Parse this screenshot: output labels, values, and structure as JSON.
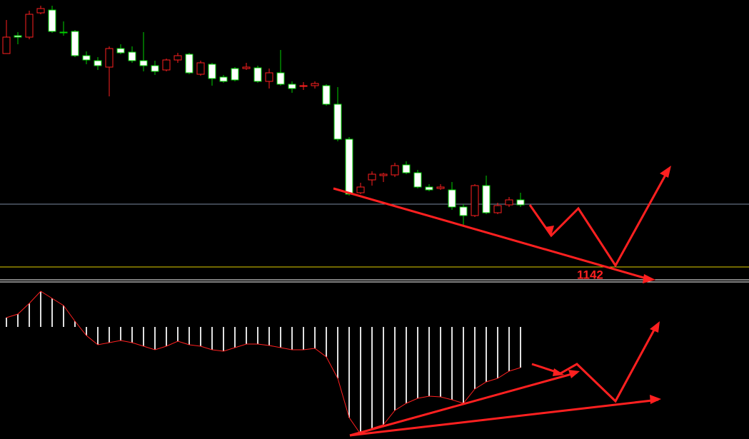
{
  "chart_data": [
    {
      "type": "candlestick",
      "up_color": "#ff2020",
      "down_color": "#ffffff",
      "wick_down_color": "#00d000",
      "ylim": [
        1132.5,
        1329
      ],
      "open": [
        1291.5,
        1304,
        1303,
        1320,
        1322,
        1306.5,
        1307,
        1290,
        1286.5,
        1282,
        1295,
        1292.5,
        1286.5,
        1283,
        1280,
        1287,
        1291,
        1277,
        1284,
        1275,
        1281,
        1281,
        1281.5,
        1272,
        1278,
        1270,
        1268.5,
        1269,
        1269,
        1256,
        1231.5,
        1194,
        1203,
        1206,
        1206.5,
        1213.5,
        1208,
        1198,
        1197,
        1196,
        1184,
        1178,
        1199,
        1180,
        1185.5,
        1189
      ],
      "high": [
        1315,
        1306.5,
        1321.5,
        1325,
        1325,
        1314,
        1308,
        1293,
        1289,
        1296.5,
        1298,
        1296.5,
        1306.5,
        1286.5,
        1288,
        1292,
        1292,
        1286.5,
        1285,
        1276.5,
        1282,
        1285,
        1283,
        1281,
        1294,
        1272,
        1271.5,
        1272,
        1270,
        1268,
        1233,
        1201,
        1209,
        1208,
        1215,
        1216,
        1210,
        1200,
        1200,
        1201.5,
        1186,
        1200,
        1206,
        1187,
        1191,
        1194
      ],
      "low": [
        1291.5,
        1298,
        1301.5,
        1319,
        1306,
        1304,
        1289,
        1284,
        1280,
        1261.5,
        1291,
        1285,
        1279,
        1276.5,
        1279,
        1285,
        1277,
        1276,
        1269,
        1271,
        1272,
        1280,
        1271,
        1267,
        1269,
        1264,
        1266,
        1267,
        1255,
        1230,
        1192,
        1193,
        1199,
        1201.5,
        1205,
        1207,
        1197,
        1195,
        1196,
        1182,
        1171,
        1177,
        1179,
        1179,
        1184,
        1184
      ],
      "close": [
        1303,
        1303,
        1319,
        1323,
        1307,
        1306,
        1290,
        1287,
        1283,
        1295,
        1292,
        1286.5,
        1283,
        1279,
        1287,
        1290,
        1278,
        1285,
        1274,
        1272,
        1273,
        1282,
        1272,
        1278,
        1270,
        1267,
        1269,
        1270.5,
        1256,
        1231.5,
        1193,
        1198,
        1207,
        1207,
        1213,
        1208,
        1198,
        1196,
        1198,
        1184,
        1178,
        1199,
        1180,
        1185,
        1189,
        1185.5
      ],
      "annotation": "1142",
      "annotation_level": 1142
    },
    {
      "type": "histogram_indicator",
      "color": "#e0e0e0",
      "line_color": "#ff2020",
      "ylim": [
        -157,
        60
      ],
      "values": [
        13,
        18,
        33,
        50,
        40,
        30,
        8,
        -12,
        -25,
        -22,
        -19,
        -22,
        -27,
        -32,
        -27,
        -20,
        -25,
        -27,
        -32,
        -34,
        -29,
        -24,
        -24,
        -26,
        -29,
        -32,
        -32,
        -30,
        -42,
        -72,
        -127,
        -150,
        -142,
        -137,
        -117,
        -107,
        -100,
        -97,
        -98,
        -102,
        -107,
        -87,
        -77,
        -72,
        -62,
        -57
      ]
    }
  ]
}
